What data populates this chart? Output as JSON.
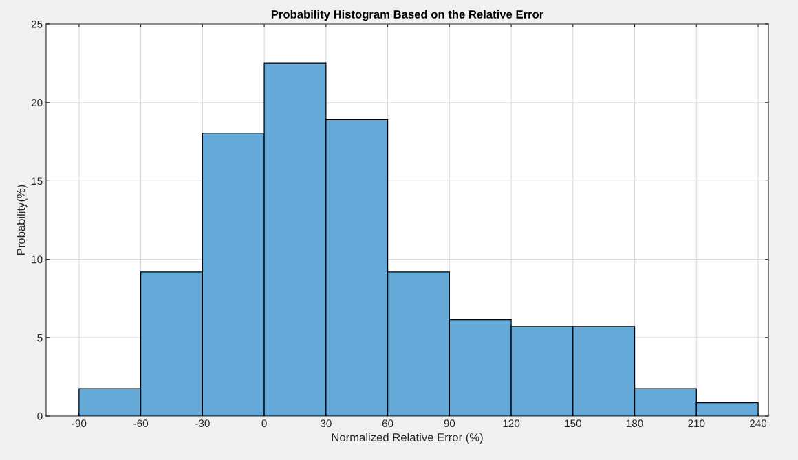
{
  "chart_data": {
    "type": "histogram",
    "title": "Probability Histogram Based on the Relative Error",
    "xlabel": "Normalized Relative Error (%)",
    "ylabel": "Probability(%)",
    "bins": [
      -90,
      -60,
      -30,
      0,
      30,
      60,
      90,
      120,
      150,
      180,
      210,
      240
    ],
    "values": [
      1.75,
      9.2,
      18.05,
      22.5,
      18.9,
      9.2,
      6.15,
      5.7,
      5.7,
      1.75,
      0.85
    ],
    "color": "#64a9d8",
    "xlim": [
      -106,
      245
    ],
    "xticks": [
      -90,
      -60,
      -30,
      0,
      30,
      60,
      90,
      120,
      150,
      180,
      210,
      240
    ],
    "ylim": [
      0,
      25
    ],
    "yticks": [
      0,
      5,
      10,
      15,
      20,
      25
    ],
    "grid": true
  }
}
